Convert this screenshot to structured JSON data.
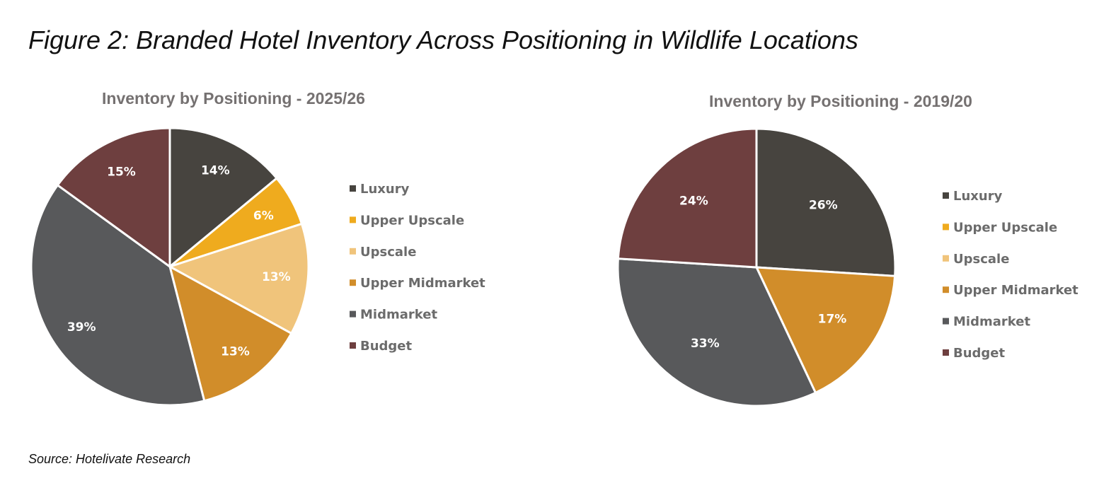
{
  "figure_title": "Figure 2: Branded Hotel Inventory Across Positioning in Wildlife Locations",
  "source": "Source: Hotelivate Research",
  "chart_data": [
    {
      "type": "pie",
      "title": "Inventory by Positioning - 2025/26",
      "legend_position": "right",
      "categories": [
        "Luxury",
        "Upper Upscale",
        "Upscale",
        "Upper Midmarket",
        "Midmarket",
        "Budget"
      ],
      "values": [
        14,
        6,
        13,
        13,
        39,
        15
      ],
      "labels": [
        "14%",
        "6%",
        "13%",
        "13%",
        "39%",
        "15%"
      ],
      "colors": [
        "#47443f",
        "#efab1e",
        "#f0c47b",
        "#d18d2a",
        "#58595b",
        "#6e3f3f"
      ]
    },
    {
      "type": "pie",
      "title": "Inventory by Positioning - 2019/20",
      "legend_position": "right",
      "categories": [
        "Luxury",
        "Upper Upscale",
        "Upscale",
        "Upper Midmarket",
        "Midmarket",
        "Budget"
      ],
      "values": [
        26,
        0,
        0,
        17,
        33,
        24
      ],
      "labels": [
        "26%",
        "",
        "",
        "17%",
        "33%",
        "24%"
      ],
      "colors": [
        "#47443f",
        "#efab1e",
        "#f0c47b",
        "#d18d2a",
        "#58595b",
        "#6e3f3f"
      ]
    }
  ]
}
